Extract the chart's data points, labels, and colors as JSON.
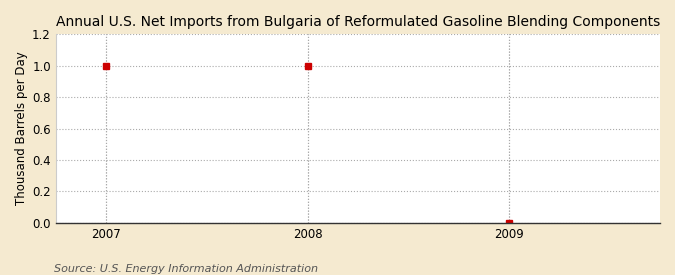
{
  "title": "Annual U.S. Net Imports from Bulgaria of Reformulated Gasoline Blending Components",
  "ylabel": "Thousand Barrels per Day",
  "source": "Source: U.S. Energy Information Administration",
  "x_values": [
    2007,
    2008,
    2009
  ],
  "y_values": [
    1.0,
    1.0,
    0.0
  ],
  "xlim": [
    2006.75,
    2009.75
  ],
  "ylim": [
    0.0,
    1.2
  ],
  "yticks": [
    0.0,
    0.2,
    0.4,
    0.6,
    0.8,
    1.0,
    1.2
  ],
  "xticks": [
    2007,
    2008,
    2009
  ],
  "marker_color": "#cc0000",
  "marker_style": "s",
  "marker_size": 4,
  "grid_color": "#aaaaaa",
  "plot_bg_color": "#ffffff",
  "outer_bg_color": "#f5ead0",
  "title_fontsize": 10,
  "label_fontsize": 8.5,
  "tick_fontsize": 8.5,
  "source_fontsize": 8
}
